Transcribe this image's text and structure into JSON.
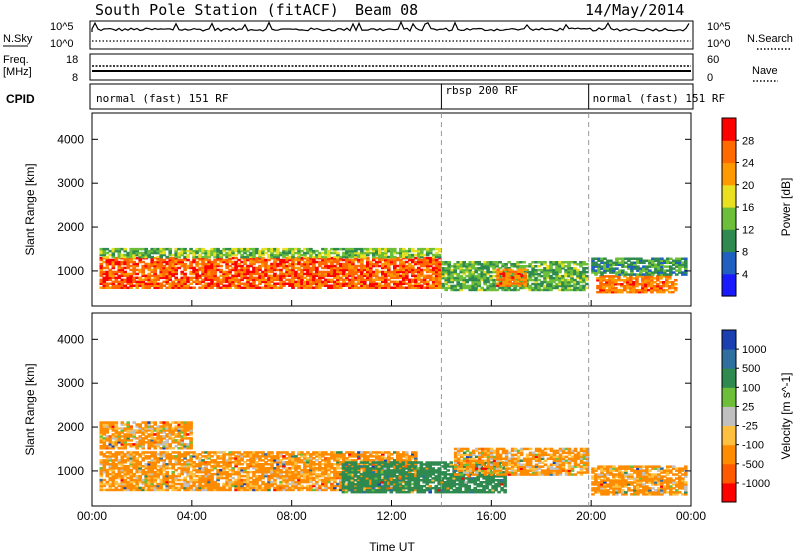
{
  "header": {
    "station": "South Pole Station (fitACF)",
    "beam": "Beam 08",
    "date": "14/May/2014"
  },
  "top_panels": {
    "nsky_label": "N.Sky",
    "nsky_ticks": [
      "10^5",
      "10^0"
    ],
    "nsearch_label": "N.Search",
    "nsearch_ticks": [
      "10^5",
      "10^0"
    ],
    "freq_label_1": "Freq.",
    "freq_label_2": "[MHz]",
    "freq_ticks": [
      "18",
      "8"
    ],
    "nave_label": "Nave",
    "nave_ticks": [
      "60",
      "0"
    ],
    "cpid_label": "CPID",
    "cpid_segments": [
      {
        "label": "normal (fast) 151 RF",
        "start_hour": 0,
        "end_hour": 14.0
      },
      {
        "label": "rbsp 200 RF",
        "start_hour": 14.0,
        "end_hour": 19.9
      },
      {
        "label": "normal (fast) 151 RF",
        "start_hour": 19.9,
        "end_hour": 24
      }
    ]
  },
  "chart_data": [
    {
      "type": "heatmap",
      "title": "Power",
      "xlabel": "Time UT",
      "ylabel": "Slant Range [km]",
      "x_ticks": [
        "00:00",
        "04:00",
        "08:00",
        "12:00",
        "16:00",
        "20:00",
        "00:00"
      ],
      "xlim": [
        0,
        24
      ],
      "y_ticks": [
        "1000",
        "2000",
        "3000",
        "4000"
      ],
      "ylim": [
        200,
        4600
      ],
      "colorbar_label": "Power [dB]",
      "colorbar_ticks": [
        "28",
        "24",
        "20",
        "16",
        "12",
        "8",
        "4"
      ],
      "colorbar_range": [
        0,
        32
      ],
      "colors": [
        "#1a1aff",
        "#2060c0",
        "#2f8a4f",
        "#6dbf3a",
        "#e8e020",
        "#ff9900",
        "#ff6a00",
        "#ff0000"
      ],
      "echo_bands": [
        {
          "t0": 0.3,
          "t1": 13.9,
          "r0": 600,
          "r1": 1300,
          "value": 28
        },
        {
          "t0": 0.3,
          "t1": 13.9,
          "r0": 1300,
          "r1": 1500,
          "value": 14
        },
        {
          "t0": 14.0,
          "t1": 19.8,
          "r0": 550,
          "r1": 1200,
          "value": 12
        },
        {
          "t0": 16.2,
          "t1": 17.3,
          "r0": 650,
          "r1": 1050,
          "value": 26
        },
        {
          "t0": 20.2,
          "t1": 23.4,
          "r0": 500,
          "r1": 900,
          "value": 26
        },
        {
          "t0": 20.0,
          "t1": 23.8,
          "r0": 900,
          "r1": 1300,
          "value": 10
        }
      ]
    },
    {
      "type": "heatmap",
      "title": "Velocity",
      "xlabel": "Time UT",
      "ylabel": "Slant Range [km]",
      "x_ticks": [
        "00:00",
        "04:00",
        "08:00",
        "12:00",
        "16:00",
        "20:00",
        "00:00"
      ],
      "xlim": [
        0,
        24
      ],
      "y_ticks": [
        "1000",
        "2000",
        "3000",
        "4000"
      ],
      "ylim": [
        200,
        4600
      ],
      "colorbar_label": "Velocity [m s^-1]",
      "colorbar_ticks": [
        "1000",
        "500",
        "100",
        "25",
        "-25",
        "-100",
        "-500",
        "-1000"
      ],
      "colors": [
        "#1a3fb0",
        "#2f6f9f",
        "#2f8a4f",
        "#6dbf3a",
        "#c0c0c0",
        "#ffc040",
        "#ff8c00",
        "#ff5a00",
        "#ff0000"
      ],
      "echo_bands": [
        {
          "t0": 0.3,
          "t1": 13.0,
          "r0": 550,
          "r1": 1450,
          "value": -200
        },
        {
          "t0": 0.3,
          "t1": 4.0,
          "r0": 1500,
          "r1": 2100,
          "value": -150
        },
        {
          "t0": 10.0,
          "t1": 16.5,
          "r0": 500,
          "r1": 1200,
          "value": 300
        },
        {
          "t0": 14.5,
          "t1": 19.8,
          "r0": 900,
          "r1": 1500,
          "value": -150
        },
        {
          "t0": 20.0,
          "t1": 23.8,
          "r0": 450,
          "r1": 1100,
          "value": -200
        }
      ]
    }
  ]
}
